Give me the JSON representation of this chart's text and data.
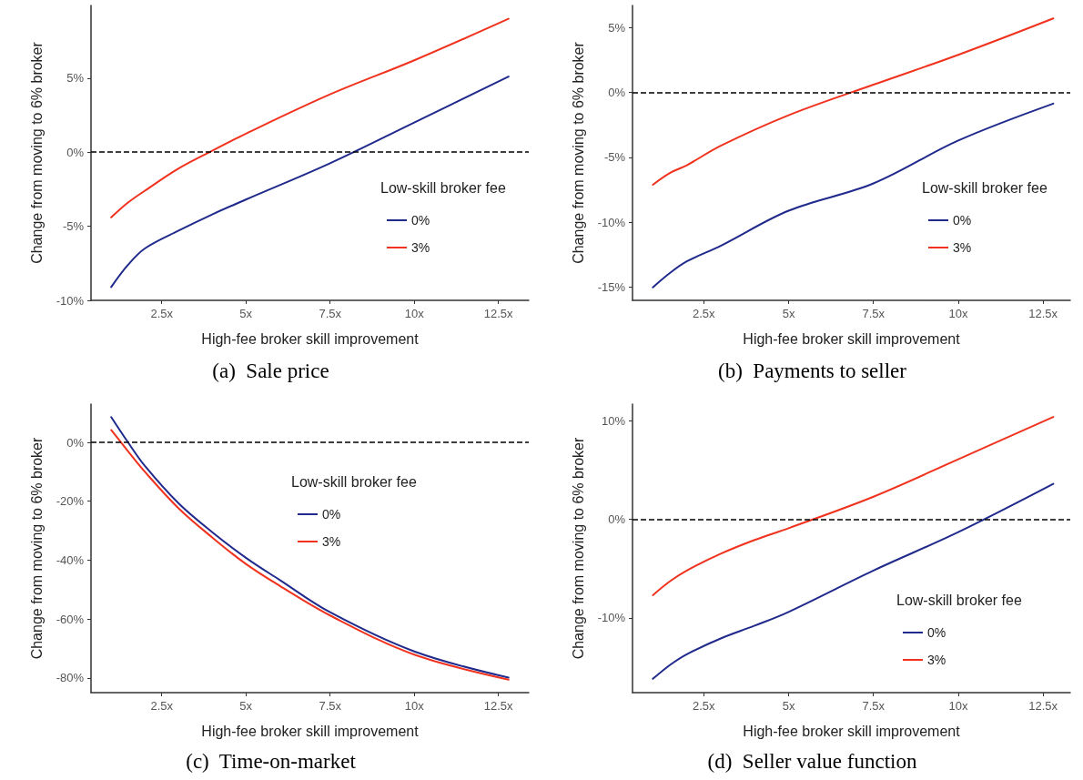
{
  "chart_data": [
    {
      "type": "line",
      "title": "(a)  Sale price",
      "xlabel": "High-fee broker skill improvement",
      "ylabel": "Change from moving to 6% broker",
      "legend_title": "Low-skill broker fee",
      "legend": "right",
      "marker": "none",
      "line_style": "solid",
      "grid": false,
      "xlim": [
        0.4,
        13.4
      ],
      "xticks": [
        {
          "value": 2.5,
          "label": "2.5x"
        },
        {
          "value": 5,
          "label": "5x"
        },
        {
          "value": 7.5,
          "label": "7.5x"
        },
        {
          "value": 10,
          "label": "10x"
        },
        {
          "value": 12.5,
          "label": "12.5x"
        }
      ],
      "ylim": [
        -10,
        9.9
      ],
      "yticks": [
        {
          "value": -10,
          "label": "-10%"
        },
        {
          "value": -5,
          "label": "-5%"
        },
        {
          "value": 0,
          "label": "0%"
        },
        {
          "value": 5,
          "label": "5%"
        }
      ],
      "x": [
        1,
        1.5,
        2,
        3,
        4,
        5,
        7.5,
        10,
        12.8
      ],
      "series": [
        {
          "name": "0%",
          "color": "#1f2a8c",
          "values": [
            -9.1,
            -7.6,
            -6.5,
            -5.3,
            -4.2,
            -3.2,
            -0.75,
            2.0,
            5.1
          ]
        },
        {
          "name": "3%",
          "color": "#f0321e",
          "values": [
            -4.4,
            -3.4,
            -2.6,
            -1.1,
            0.1,
            1.25,
            3.9,
            6.2,
            9.0
          ]
        }
      ],
      "ref_lines": [
        {
          "axis": "y",
          "value": 0,
          "color": "#000000",
          "line_style": "dashed"
        }
      ]
    },
    {
      "type": "line",
      "title": "(b)  Payments to seller",
      "xlabel": "High-fee broker skill improvement",
      "ylabel": "Change from moving to 6% broker",
      "legend_title": "Low-skill broker fee",
      "legend": "right",
      "marker": "none",
      "line_style": "solid",
      "grid": false,
      "xlim": [
        0.4,
        13.3
      ],
      "xticks": [
        {
          "value": 2.5,
          "label": "2.5x"
        },
        {
          "value": 5,
          "label": "5x"
        },
        {
          "value": 7.5,
          "label": "7.5x"
        },
        {
          "value": 10,
          "label": "10x"
        },
        {
          "value": 12.5,
          "label": "12.5x"
        }
      ],
      "ylim": [
        -16,
        6.7
      ],
      "yticks": [
        {
          "value": -15,
          "label": "-15%"
        },
        {
          "value": -10,
          "label": "-10%"
        },
        {
          "value": -5,
          "label": "-5%"
        },
        {
          "value": 0,
          "label": "0%"
        },
        {
          "value": 5,
          "label": "5%"
        }
      ],
      "x": [
        1,
        1.5,
        2,
        3,
        5,
        7.5,
        10,
        12.8
      ],
      "series": [
        {
          "name": "0%",
          "color": "#1f2a8c",
          "values": [
            -15.0,
            -13.9,
            -13.0,
            -11.8,
            -9.1,
            -7.0,
            -3.7,
            -0.86
          ]
        },
        {
          "name": "3%",
          "color": "#f0321e",
          "values": [
            -7.1,
            -6.2,
            -5.6,
            -4.1,
            -1.75,
            0.6,
            2.9,
            5.7
          ]
        }
      ],
      "ref_lines": [
        {
          "axis": "y",
          "value": 0,
          "color": "#000000",
          "line_style": "dashed"
        }
      ]
    },
    {
      "type": "line",
      "title": "(c)  Time-on-market",
      "xlabel": "High-fee broker skill improvement",
      "ylabel": "Change from moving to 6% broker",
      "legend_title": "Low-skill broker fee",
      "legend": "top right",
      "marker": "none",
      "line_style": "solid",
      "grid": false,
      "xlim": [
        0.4,
        13.4
      ],
      "xticks": [
        {
          "value": 2.5,
          "label": "2.5x"
        },
        {
          "value": 5,
          "label": "5x"
        },
        {
          "value": 7.5,
          "label": "7.5x"
        },
        {
          "value": 10,
          "label": "10x"
        },
        {
          "value": 12.5,
          "label": "12.5x"
        }
      ],
      "ylim": [
        -85,
        13
      ],
      "yticks": [
        {
          "value": -80,
          "label": "-80%"
        },
        {
          "value": -60,
          "label": "-60%"
        },
        {
          "value": -40,
          "label": "-40%"
        },
        {
          "value": -20,
          "label": "-20%"
        },
        {
          "value": 0,
          "label": "0%"
        }
      ],
      "x": [
        1,
        1.5,
        2,
        3,
        4,
        5,
        6,
        7.5,
        10,
        12.8
      ],
      "series": [
        {
          "name": "0%",
          "color": "#1f2a8c",
          "values": [
            8.6,
            0,
            -8,
            -20.7,
            -30.5,
            -39.2,
            -46.7,
            -57.7,
            -71,
            -79.9
          ]
        },
        {
          "name": "3%",
          "color": "#f0321e",
          "values": [
            4.2,
            -3,
            -10,
            -22.4,
            -32.3,
            -41.3,
            -48.7,
            -58.8,
            -72.1,
            -80.6
          ]
        }
      ],
      "ref_lines": [
        {
          "axis": "y",
          "value": 0,
          "color": "#000000",
          "line_style": "dashed"
        }
      ]
    },
    {
      "type": "line",
      "title": "(d)  Seller value function",
      "xlabel": "High-fee broker skill improvement",
      "ylabel": "Change from moving to 6% broker",
      "legend_title": "Low-skill broker fee",
      "legend": "bottom right",
      "marker": "none",
      "line_style": "solid",
      "grid": false,
      "xlim": [
        0.4,
        13.3
      ],
      "xticks": [
        {
          "value": 2.5,
          "label": "2.5x"
        },
        {
          "value": 5,
          "label": "5x"
        },
        {
          "value": 7.5,
          "label": "7.5x"
        },
        {
          "value": 10,
          "label": "10x"
        },
        {
          "value": 12.5,
          "label": "12.5x"
        }
      ],
      "ylim": [
        -17.6,
        11.7
      ],
      "yticks": [
        {
          "value": -10,
          "label": "-10%"
        },
        {
          "value": 0,
          "label": "0%"
        },
        {
          "value": 10,
          "label": "10%"
        }
      ],
      "x": [
        1,
        1.5,
        2,
        3,
        4,
        5,
        7.5,
        10,
        12.8
      ],
      "series": [
        {
          "name": "0%",
          "color": "#1f2a8c",
          "values": [
            -16.2,
            -14.8,
            -13.7,
            -12.1,
            -10.8,
            -9.4,
            -5.2,
            -1.3,
            3.6
          ]
        },
        {
          "name": "3%",
          "color": "#f0321e",
          "values": [
            -7.7,
            -6.3,
            -5.2,
            -3.5,
            -2.1,
            -0.9,
            2.3,
            6.1,
            10.4
          ]
        }
      ],
      "ref_lines": [
        {
          "axis": "y",
          "value": 0,
          "color": "#000000",
          "line_style": "dashed"
        }
      ]
    }
  ]
}
